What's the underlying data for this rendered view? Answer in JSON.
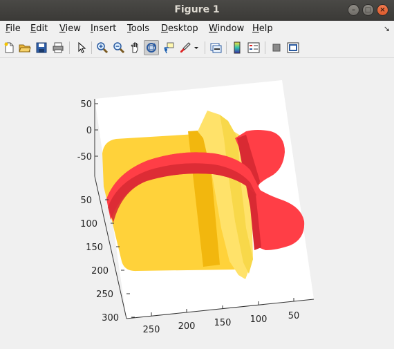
{
  "window": {
    "title": "Figure 1"
  },
  "menu": [
    {
      "label": "File",
      "u": "F",
      "rest": "ile"
    },
    {
      "label": "Edit",
      "u": "E",
      "rest": "dit"
    },
    {
      "label": "View",
      "u": "V",
      "rest": "iew"
    },
    {
      "label": "Insert",
      "u": "I",
      "rest": "nsert"
    },
    {
      "label": "Tools",
      "u": "T",
      "rest": "ools"
    },
    {
      "label": "Desktop",
      "u": "D",
      "rest": "esktop"
    },
    {
      "label": "Window",
      "u": "W",
      "rest": "indow"
    },
    {
      "label": "Help",
      "u": "H",
      "rest": "elp"
    }
  ],
  "toolbar": {
    "icons": [
      "new-figure-icon",
      "open-file-icon",
      "save-icon",
      "print-icon",
      "pointer-icon",
      "zoom-in-icon",
      "zoom-out-icon",
      "pan-hand-icon",
      "rotate-3d-icon",
      "data-cursor-icon",
      "brush-icon",
      "brush-dropdown-icon",
      "link-plot-icon",
      "colorbar-icon",
      "legend-icon",
      "hide-plot-tools-icon",
      "show-plot-tools-icon"
    ],
    "active": "rotate-3d-icon"
  },
  "axes": {
    "z_ticks": [
      "50",
      "0",
      "-50"
    ],
    "y_ticks": [
      "50",
      "100",
      "150",
      "200",
      "250",
      "300"
    ],
    "x_ticks": [
      "250",
      "200",
      "150",
      "100",
      "50"
    ]
  },
  "colors": {
    "gold": "#ffd23a",
    "gold_dark": "#f2b70e",
    "gold_light": "#ffe26a",
    "ribbon": "#ff3e46",
    "ribbon_dark": "#d92a33"
  }
}
